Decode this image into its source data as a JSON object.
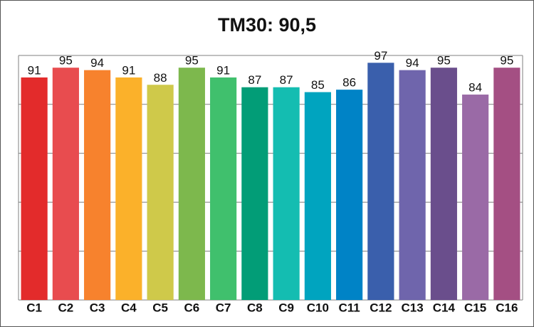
{
  "chart_data": {
    "type": "bar",
    "title": "TM30: 90,5",
    "categories": [
      "C1",
      "C2",
      "C3",
      "C4",
      "C5",
      "C6",
      "C7",
      "C8",
      "C9",
      "C10",
      "C11",
      "C12",
      "C13",
      "C14",
      "C15",
      "C16"
    ],
    "values": [
      91,
      95,
      94,
      91,
      88,
      95,
      91,
      87,
      87,
      85,
      86,
      97,
      94,
      95,
      84,
      95
    ],
    "colors": [
      "#e32b2b",
      "#e84c4f",
      "#f7822d",
      "#fbb12a",
      "#cfc94a",
      "#7db84d",
      "#40c06d",
      "#029d77",
      "#14bdb1",
      "#00a4bf",
      "#0083c6",
      "#3a5fac",
      "#6f65ac",
      "#6a4e8c",
      "#9a6aa6",
      "#a44f83"
    ],
    "ylim": [
      0,
      100
    ],
    "yticks": [
      0,
      20,
      40,
      60,
      80,
      100
    ],
    "grid": true
  }
}
